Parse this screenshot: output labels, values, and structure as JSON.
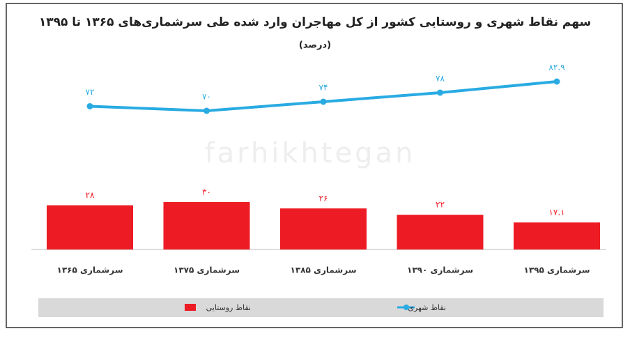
{
  "chart_data": {
    "type": "bar-line",
    "title": "سهم نقاط شهری و روستایی کشور از کل مهاجران وارد شده طی سرشماری‌های ۱۳۶۵ تا ۱۳۹۵",
    "subtitle": "(درصد)",
    "watermark": "farhikhtegan",
    "categories": [
      "سرشماری ۱۳۶۵",
      "سرشماری ۱۳۷۵",
      "سرشماری ۱۳۸۵",
      "سرشماری ۱۳۹۰",
      "سرشماری ۱۳۹۵"
    ],
    "series": [
      {
        "name": "نقاط شهری",
        "type": "line",
        "color": "#29abe2",
        "values": [
          72,
          70,
          74,
          78,
          82.9
        ],
        "value_labels": [
          "۷۲",
          "۷۰",
          "۷۴",
          "۷۸",
          "۸۲.۹"
        ]
      },
      {
        "name": "نقاط روستایی",
        "type": "bar",
        "color": "#ed1c24",
        "values": [
          28,
          30,
          26,
          22,
          17.1
        ],
        "value_labels": [
          "۲۸",
          "۳۰",
          "۲۶",
          "۲۲",
          "۱۷.۱"
        ]
      }
    ]
  }
}
